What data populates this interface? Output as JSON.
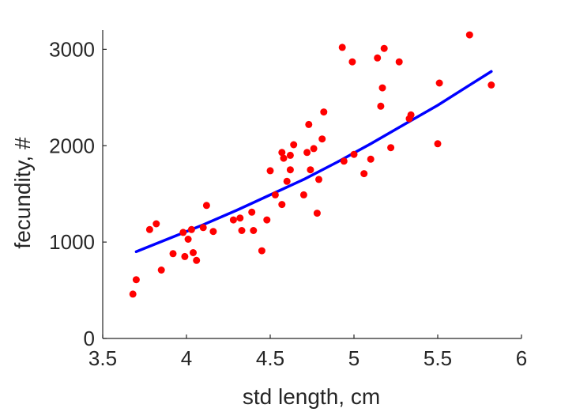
{
  "chart_data": {
    "type": "scatter",
    "title": "",
    "xlabel": "std length, cm",
    "ylabel": "fecundity, #",
    "xlim": [
      3.5,
      6
    ],
    "ylim": [
      0,
      3200
    ],
    "x_ticks": [
      "3.5",
      "4",
      "4.5",
      "5",
      "5.5",
      "6"
    ],
    "y_ticks": [
      "0",
      "1000",
      "2000",
      "3000"
    ],
    "grid": false,
    "legend": "none",
    "colors": {
      "points": "#ff0000",
      "fit": "#0000ff",
      "axis": "#262626"
    },
    "series": [
      {
        "kind": "points",
        "x": [
          3.68,
          3.7,
          3.78,
          3.82,
          3.85,
          3.92,
          3.98,
          3.99,
          4.01,
          4.03,
          4.04,
          4.06,
          4.1,
          4.12,
          4.16,
          4.28,
          4.32,
          4.33,
          4.39,
          4.4,
          4.45,
          4.48,
          4.5,
          4.53,
          4.57,
          4.57,
          4.58,
          4.6,
          4.62,
          4.62,
          4.64,
          4.7,
          4.72,
          4.73,
          4.74,
          4.76,
          4.78,
          4.79,
          4.81,
          4.82,
          4.93,
          4.94,
          4.99,
          5.0,
          5.06,
          5.1,
          5.14,
          5.16,
          5.17,
          5.18,
          5.22,
          5.27,
          5.33,
          5.34,
          5.5,
          5.51,
          5.69,
          5.82
        ],
        "y": [
          460,
          610,
          1130,
          1190,
          710,
          880,
          1100,
          850,
          1030,
          1130,
          890,
          810,
          1150,
          1380,
          1110,
          1230,
          1250,
          1120,
          1310,
          1120,
          910,
          1230,
          1740,
          1490,
          1930,
          1390,
          1870,
          1630,
          1900,
          1750,
          2010,
          1490,
          1930,
          2220,
          1750,
          1970,
          1300,
          1650,
          2070,
          2350,
          3020,
          1840,
          2870,
          1910,
          1710,
          1860,
          2910,
          2410,
          2600,
          3010,
          1980,
          2870,
          2280,
          2320,
          2020,
          2650,
          3150,
          2630
        ]
      },
      {
        "kind": "fit",
        "x": [
          3.7,
          3.9,
          4.1,
          4.3,
          4.5,
          4.7,
          4.9,
          5.1,
          5.3,
          5.5,
          5.7,
          5.82
        ],
        "y": [
          900,
          1040,
          1180,
          1330,
          1490,
          1650,
          1830,
          2020,
          2220,
          2420,
          2640,
          2770
        ]
      }
    ]
  }
}
